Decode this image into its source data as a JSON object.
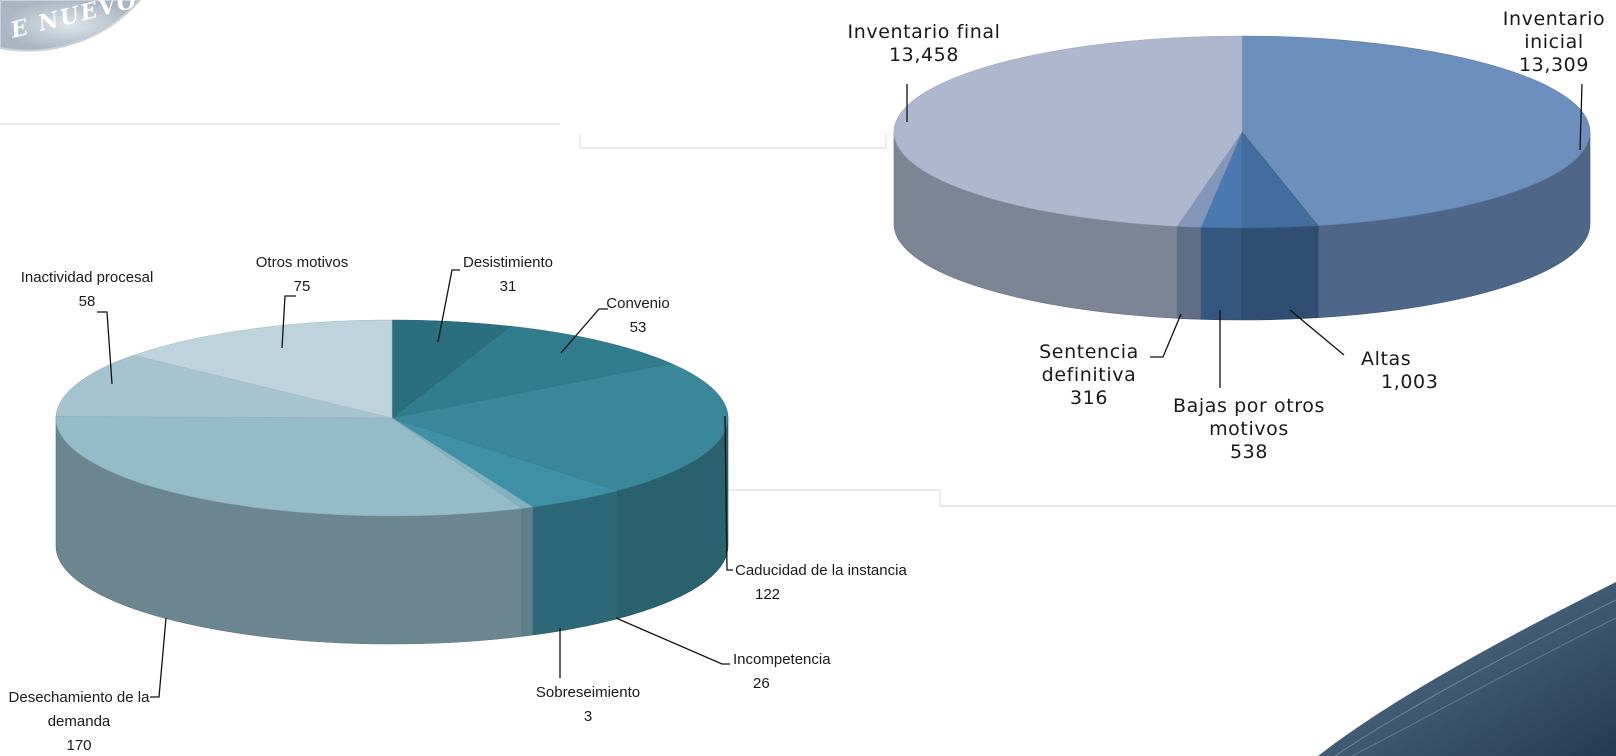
{
  "header": {
    "seal_text": "E NUEVO"
  },
  "chart_data": [
    {
      "type": "pie",
      "title": "",
      "slices": [
        {
          "label_lines": [
            "Inventario",
            "inicial"
          ],
          "value": 13309,
          "value_label": "13,309",
          "color": "#6c8fbd"
        },
        {
          "label_lines": [
            "Altas"
          ],
          "value": 1003,
          "value_label": "1,003",
          "color": "#436d9f"
        },
        {
          "label_lines": [
            "Bajas por otros",
            "motivos"
          ],
          "value": 538,
          "value_label": "538",
          "color": "#4a78b0"
        },
        {
          "label_lines": [
            "Sentencia",
            "definitiva"
          ],
          "value": 316,
          "value_label": "316",
          "color": "#8497ba"
        },
        {
          "label_lines": [
            "Inventario final"
          ],
          "value": 13458,
          "value_label": "13,458",
          "color": "#adb8cf"
        }
      ]
    },
    {
      "type": "pie",
      "title": "",
      "slices": [
        {
          "label_lines": [
            "Desistimiento"
          ],
          "value": 31,
          "value_label": "31",
          "color": "#2b6e7e"
        },
        {
          "label_lines": [
            "Convenio"
          ],
          "value": 53,
          "value_label": "53",
          "color": "#317d8e"
        },
        {
          "label_lines": [
            "Caducidad de la instancia"
          ],
          "value": 122,
          "value_label": "122",
          "color": "#3a8799"
        },
        {
          "label_lines": [
            "Incompetencia"
          ],
          "value": 26,
          "value_label": "26",
          "color": "#3d90a5"
        },
        {
          "label_lines": [
            "Sobreseimiento"
          ],
          "value": 3,
          "value_label": "3",
          "color": "#84b2bf"
        },
        {
          "label_lines": [
            "Desechamiento de la",
            "demanda"
          ],
          "value": 170,
          "value_label": "170",
          "color": "#95bac8"
        },
        {
          "label_lines": [
            "Inactividad procesal"
          ],
          "value": 58,
          "value_label": "58",
          "color": "#a5c4d0"
        },
        {
          "label_lines": [
            "Otros motivos"
          ],
          "value": 75,
          "value_label": "75",
          "color": "#bed3dc"
        }
      ]
    }
  ]
}
